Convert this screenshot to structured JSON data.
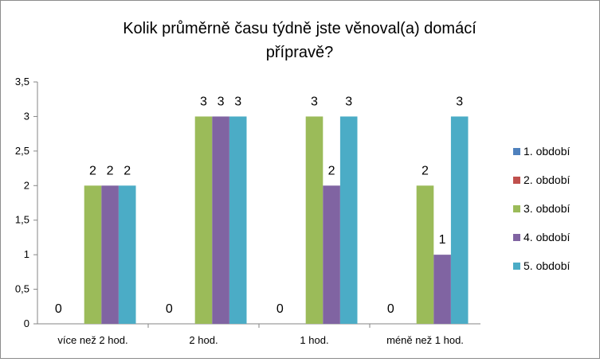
{
  "chart_data": {
    "type": "bar",
    "title_lines": [
      "Kolik průměrně času týdně jste věnoval(a) domácí",
      "přípravě?"
    ],
    "categories": [
      "více než 2 hod.",
      "2 hod.",
      "1 hod.",
      "méně než 1 hod."
    ],
    "series": [
      {
        "name": "1. období",
        "color": "#4F81BD",
        "values": [
          0,
          0,
          0,
          0
        ]
      },
      {
        "name": "2. období",
        "color": "#C0504D",
        "values": [
          0,
          0,
          0,
          0
        ]
      },
      {
        "name": "3. období",
        "color": "#9BBB59",
        "values": [
          2,
          3,
          3,
          2
        ]
      },
      {
        "name": "4. období",
        "color": "#8064A2",
        "values": [
          2,
          3,
          2,
          1
        ]
      },
      {
        "name": "5. období",
        "color": "#4BACC6",
        "values": [
          2,
          3,
          3,
          3
        ]
      }
    ],
    "ylim": [
      0,
      3.5
    ],
    "yticks": [
      "0",
      "0,5",
      "1",
      "1,5",
      "2",
      "2,5",
      "3",
      "3,5"
    ],
    "zero_label_position": "first-series-only",
    "grid": false,
    "legend_position": "right"
  }
}
